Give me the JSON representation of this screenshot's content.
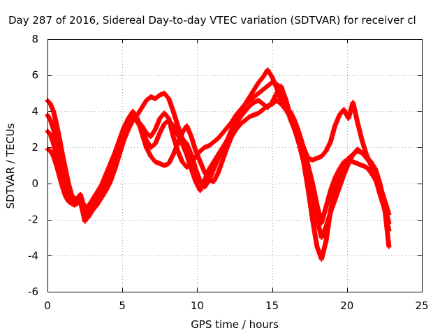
{
  "chart_data": {
    "type": "scatter",
    "title": "Day 287 of 2016, Sidereal Day-to-day VTEC variation (SDTVAR) for receiver cl",
    "xlabel": "GPS time / hours",
    "ylabel": "SDTVAR / TECUs",
    "xlim": [
      0,
      25
    ],
    "ylim": [
      -6,
      8
    ],
    "xticks": [
      0,
      5,
      10,
      15,
      20,
      25
    ],
    "yticks": [
      -6,
      -4,
      -2,
      0,
      2,
      4,
      6,
      8
    ],
    "grid": true,
    "marker": "plus",
    "color": "#ff0000",
    "series": [
      {
        "x": [
          0,
          0.2,
          0.4,
          0.6,
          0.8,
          1.0,
          1.2,
          1.4,
          1.6,
          1.8,
          2.0,
          2.2,
          2.5,
          2.7,
          3.0,
          3.3,
          3.6,
          3.9,
          4.2,
          4.5,
          4.8,
          5.1,
          5.4,
          5.7,
          6.0,
          6.3,
          6.6,
          6.9,
          7.2,
          7.5,
          7.8,
          8.1,
          8.4,
          8.7,
          9.0,
          9.3,
          9.6,
          9.9,
          10.2,
          10.5,
          10.8,
          11.1,
          11.4,
          11.7,
          12.0,
          12.3,
          12.6,
          12.9,
          13.2,
          13.5,
          13.8,
          14.1,
          14.4,
          14.7,
          15.0,
          15.3,
          15.6,
          15.9,
          16.2,
          16.5,
          16.8,
          17.1,
          17.4,
          17.7,
          18.0,
          18.3,
          18.6,
          18.9,
          19.2,
          19.5,
          19.8,
          20.1,
          20.4,
          20.7,
          21.0,
          21.3,
          21.6,
          21.9,
          22.2,
          22.5,
          22.8
        ],
        "y": [
          4.6,
          4.4,
          4.0,
          3.3,
          2.5,
          1.6,
          0.8,
          0.0,
          -0.6,
          -0.9,
          -1.0,
          -1.1,
          -1.2,
          -1.5,
          -1.1,
          -0.9,
          -0.6,
          -0.2,
          0.4,
          1.2,
          2.0,
          2.8,
          3.3,
          3.7,
          3.5,
          3.2,
          2.8,
          2.6,
          3.0,
          3.6,
          3.9,
          3.6,
          2.6,
          1.8,
          1.2,
          0.9,
          1.1,
          1.5,
          1.8,
          2.0,
          2.1,
          2.3,
          2.5,
          2.8,
          3.1,
          3.4,
          3.8,
          4.1,
          4.4,
          4.6,
          4.8,
          5.0,
          5.2,
          5.4,
          5.6,
          5.5,
          5.3,
          4.7,
          3.8,
          3.0,
          2.2,
          1.4,
          0.5,
          -0.8,
          -2.0,
          -3.0,
          -2.4,
          -1.6,
          -0.9,
          -0.2,
          0.5,
          1.1,
          1.6,
          1.9,
          1.7,
          1.4,
          1.1,
          0.6,
          -0.1,
          -0.9,
          -1.7
        ]
      },
      {
        "x": [
          0,
          0.2,
          0.4,
          0.6,
          0.8,
          1.0,
          1.2,
          1.4,
          1.6,
          1.8,
          2.0,
          2.2,
          2.5,
          2.7,
          3.0,
          3.3,
          3.6,
          3.9,
          4.2,
          4.5,
          4.8,
          5.1,
          5.4,
          5.7,
          6.0,
          6.3,
          6.6,
          6.9,
          7.2,
          7.5,
          7.8,
          8.1,
          8.4,
          8.7,
          9.0,
          9.3,
          9.6,
          9.9,
          10.2,
          10.5,
          10.8,
          11.1,
          11.4,
          11.7,
          12.0,
          12.3,
          12.6,
          12.9,
          13.2,
          13.5,
          13.8,
          14.1,
          14.4,
          14.7,
          15.0,
          15.3,
          15.6,
          15.9,
          16.2,
          16.5,
          16.8,
          17.1,
          17.4,
          17.7,
          18.0,
          18.3,
          18.6,
          18.9,
          19.2,
          19.5,
          19.8,
          20.1,
          20.4,
          20.7,
          21.0,
          21.3,
          21.6,
          21.9,
          22.2,
          22.5,
          22.8
        ],
        "y": [
          3.8,
          3.5,
          3.0,
          2.3,
          1.5,
          0.7,
          0.0,
          -0.5,
          -0.8,
          -0.9,
          -0.8,
          -0.6,
          -1.5,
          -1.9,
          -1.5,
          -1.2,
          -0.8,
          -0.4,
          0.1,
          0.8,
          1.6,
          2.4,
          3.0,
          3.5,
          3.8,
          4.2,
          4.6,
          4.8,
          4.7,
          4.9,
          5.0,
          4.7,
          4.0,
          3.2,
          2.5,
          2.2,
          1.6,
          0.8,
          0.1,
          -0.2,
          0.2,
          0.8,
          1.4,
          1.9,
          2.4,
          3.0,
          3.5,
          4.0,
          4.4,
          4.8,
          5.2,
          5.6,
          5.9,
          6.3,
          5.9,
          5.3,
          4.6,
          4.2,
          4.0,
          3.5,
          2.8,
          2.0,
          1.0,
          0.0,
          -1.2,
          -2.2,
          -1.3,
          -0.4,
          0.3,
          0.8,
          1.2,
          1.3,
          1.2,
          1.1,
          1.0,
          0.9,
          0.6,
          0.2,
          -0.4,
          -1.2,
          -2.2
        ]
      },
      {
        "x": [
          0,
          0.2,
          0.4,
          0.6,
          0.8,
          1.0,
          1.2,
          1.4,
          1.6,
          1.8,
          2.0,
          2.2,
          2.5,
          2.7,
          3.0,
          3.3,
          3.6,
          3.9,
          4.2,
          4.5,
          4.8,
          5.1,
          5.4,
          5.7,
          6.0,
          6.3,
          6.6,
          6.9,
          7.2,
          7.5,
          7.8,
          8.1,
          8.4,
          8.7,
          9.0,
          9.3,
          9.6,
          9.9,
          10.2,
          10.5,
          10.8,
          11.1,
          11.4,
          11.7,
          12.0,
          12.3,
          12.6,
          12.9,
          13.2,
          13.5,
          13.8,
          14.1,
          14.4,
          14.7,
          15.0,
          15.3,
          15.6,
          15.9,
          16.2,
          16.5,
          16.8,
          17.1,
          17.4,
          17.7,
          18.0,
          18.3,
          18.6,
          18.9,
          19.2,
          19.5,
          19.8,
          20.1,
          20.4,
          20.7,
          21.0,
          21.3,
          21.6,
          21.9,
          22.2,
          22.5,
          22.8
        ],
        "y": [
          2.9,
          2.7,
          2.2,
          1.5,
          0.8,
          0.1,
          -0.5,
          -0.9,
          -1.1,
          -1.2,
          -1.1,
          -1.0,
          -2.1,
          -1.8,
          -1.2,
          -0.7,
          -0.2,
          0.4,
          1.0,
          1.6,
          2.3,
          3.0,
          3.6,
          4.0,
          3.6,
          2.8,
          2.0,
          1.5,
          1.2,
          1.1,
          1.0,
          1.1,
          1.6,
          2.2,
          2.8,
          3.2,
          2.6,
          1.8,
          1.2,
          0.6,
          0.2,
          0.1,
          0.6,
          1.3,
          2.0,
          2.6,
          3.0,
          3.3,
          3.5,
          3.7,
          3.8,
          3.9,
          4.1,
          4.3,
          4.4,
          4.6,
          4.4,
          4.1,
          3.7,
          3.0,
          2.2,
          1.2,
          -0.3,
          -2.0,
          -3.5,
          -4.2,
          -3.2,
          -1.5,
          -0.3,
          0.4,
          0.9,
          1.4,
          1.6,
          1.8,
          1.7,
          1.5,
          1.2,
          0.8,
          0.0,
          -1.2,
          -3.5
        ]
      },
      {
        "x": [
          0,
          0.2,
          0.4,
          0.6,
          0.8,
          1.0,
          1.2,
          1.4,
          1.6,
          1.8,
          2.0,
          2.2,
          2.5,
          2.7,
          3.0,
          3.3,
          3.6,
          3.9,
          4.2,
          4.5,
          4.8,
          5.1,
          5.4,
          5.7,
          6.0,
          6.3,
          6.6,
          6.9,
          7.2,
          7.5,
          7.8,
          8.1,
          8.4,
          8.7,
          9.0,
          9.3,
          9.6,
          9.9,
          10.2,
          10.5,
          10.8,
          11.1,
          11.4,
          11.7,
          12.0,
          12.3,
          12.6,
          12.9,
          13.2,
          13.5,
          13.8,
          14.1,
          14.4,
          14.7,
          15.0,
          15.3,
          15.6,
          15.9,
          16.2,
          16.5,
          16.8,
          17.1,
          17.4,
          17.7,
          18.0,
          18.3,
          18.6,
          18.9,
          19.2,
          19.5,
          19.8,
          20.1,
          20.4,
          20.7,
          21.0,
          21.3,
          21.6,
          21.9,
          22.2,
          22.5,
          22.8
        ],
        "y": [
          1.9,
          1.8,
          1.5,
          1.0,
          0.4,
          -0.2,
          -0.7,
          -1.0,
          -1.1,
          -1.1,
          -1.0,
          -0.9,
          -1.6,
          -1.3,
          -0.9,
          -0.5,
          -0.1,
          0.5,
          1.1,
          1.7,
          2.4,
          3.1,
          3.6,
          3.8,
          3.4,
          3.0,
          2.4,
          2.0,
          2.2,
          2.8,
          3.3,
          3.5,
          3.2,
          2.7,
          2.2,
          1.6,
          0.8,
          0.1,
          -0.4,
          0.2,
          0.8,
          1.2,
          1.6,
          2.0,
          2.4,
          2.9,
          3.3,
          3.7,
          4.0,
          4.3,
          4.5,
          4.6,
          4.4,
          4.2,
          4.5,
          5.0,
          5.4,
          4.6,
          3.6,
          3.0,
          2.6,
          2.0,
          1.4,
          1.3,
          1.4,
          1.5,
          1.8,
          2.3,
          3.2,
          3.8,
          4.1,
          3.6,
          4.5,
          3.4,
          2.4,
          1.6,
          1.0,
          0.3,
          -0.6,
          -1.4,
          -2.6
        ]
      }
    ]
  }
}
